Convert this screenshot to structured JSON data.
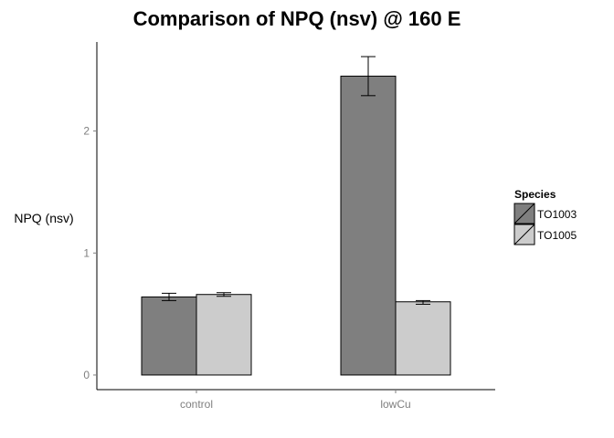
{
  "chart_data": {
    "type": "bar",
    "title": "Comparison of NPQ (nsv) @ 160 E",
    "xlabel": "",
    "ylabel": "NPQ (nsv)",
    "categories": [
      "control",
      "lowCu"
    ],
    "ylim": [
      -0.12,
      2.73
    ],
    "yticks": [
      0,
      1,
      2
    ],
    "grid": false,
    "legend": {
      "title": "Species",
      "position": "right"
    },
    "series": [
      {
        "name": "TO1003",
        "color": "#7f7f7f",
        "values": [
          0.64,
          2.45
        ],
        "error_low": [
          0.61,
          2.29
        ],
        "error_high": [
          0.67,
          2.61
        ]
      },
      {
        "name": "TO1005",
        "color": "#cccccc",
        "values": [
          0.66,
          0.6
        ],
        "error_low": [
          0.645,
          0.58
        ],
        "error_high": [
          0.675,
          0.61
        ]
      }
    ]
  }
}
